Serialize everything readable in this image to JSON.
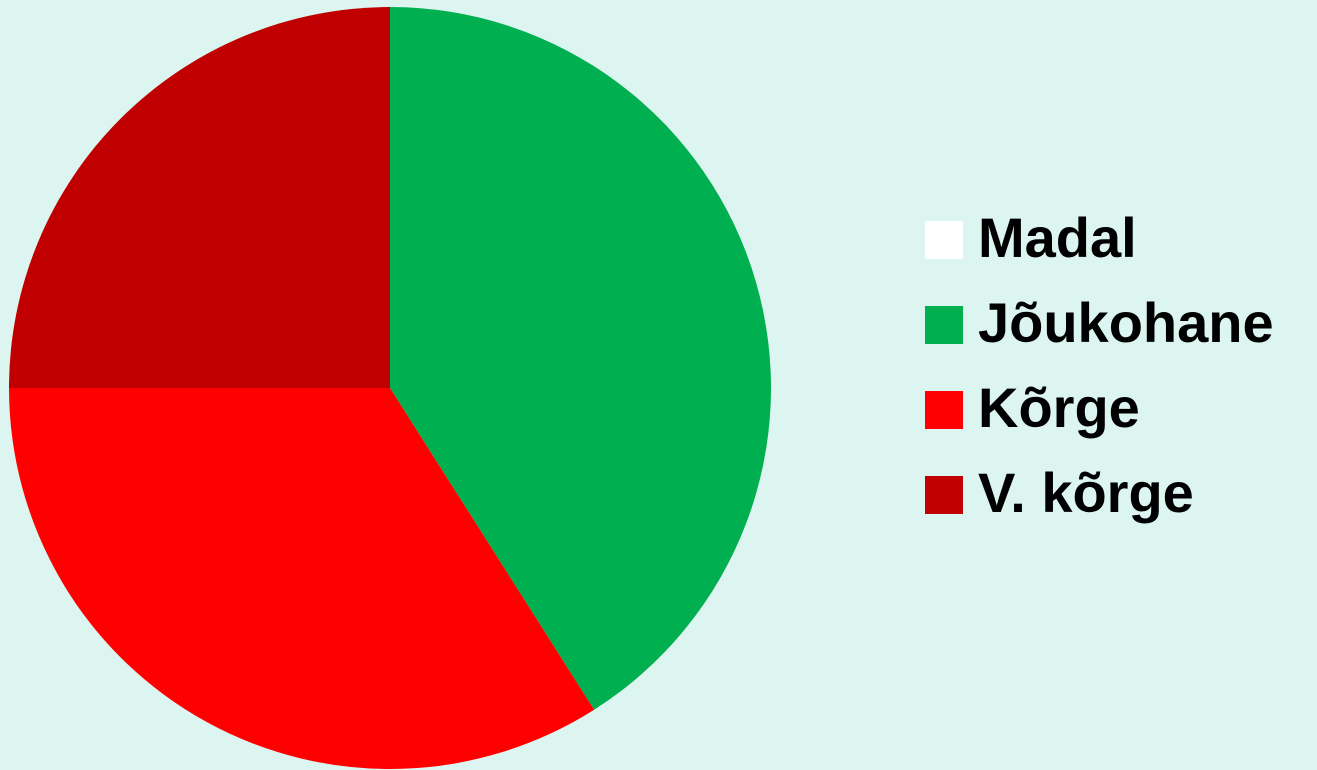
{
  "chart_data": {
    "type": "pie",
    "categories": [
      "Madal",
      "Jõukohane",
      "Kõrge",
      "V. kõrge"
    ],
    "values": [
      0,
      41,
      34,
      25
    ],
    "colors": [
      "#ffffff",
      "#00b050",
      "#ff0000",
      "#c00000"
    ],
    "legend": "right"
  }
}
